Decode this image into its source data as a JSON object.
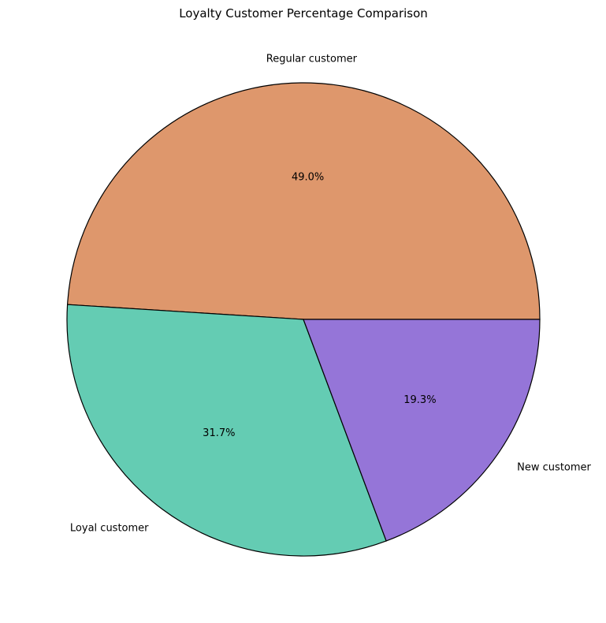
{
  "chart_data": {
    "type": "pie",
    "title": "Loyalty Customer Percentage Comparison",
    "start_angle_deg": 0,
    "direction": "counterclockwise",
    "slices": [
      {
        "label": "Regular customer",
        "value": 49.0,
        "pct_label": "49.0%",
        "color": "#DE976C"
      },
      {
        "label": "Loyal customer",
        "value": 31.7,
        "pct_label": "31.7%",
        "color": "#64CCB3"
      },
      {
        "label": "New customer",
        "value": 19.3,
        "pct_label": "19.3%",
        "color": "#9575D8"
      }
    ]
  }
}
